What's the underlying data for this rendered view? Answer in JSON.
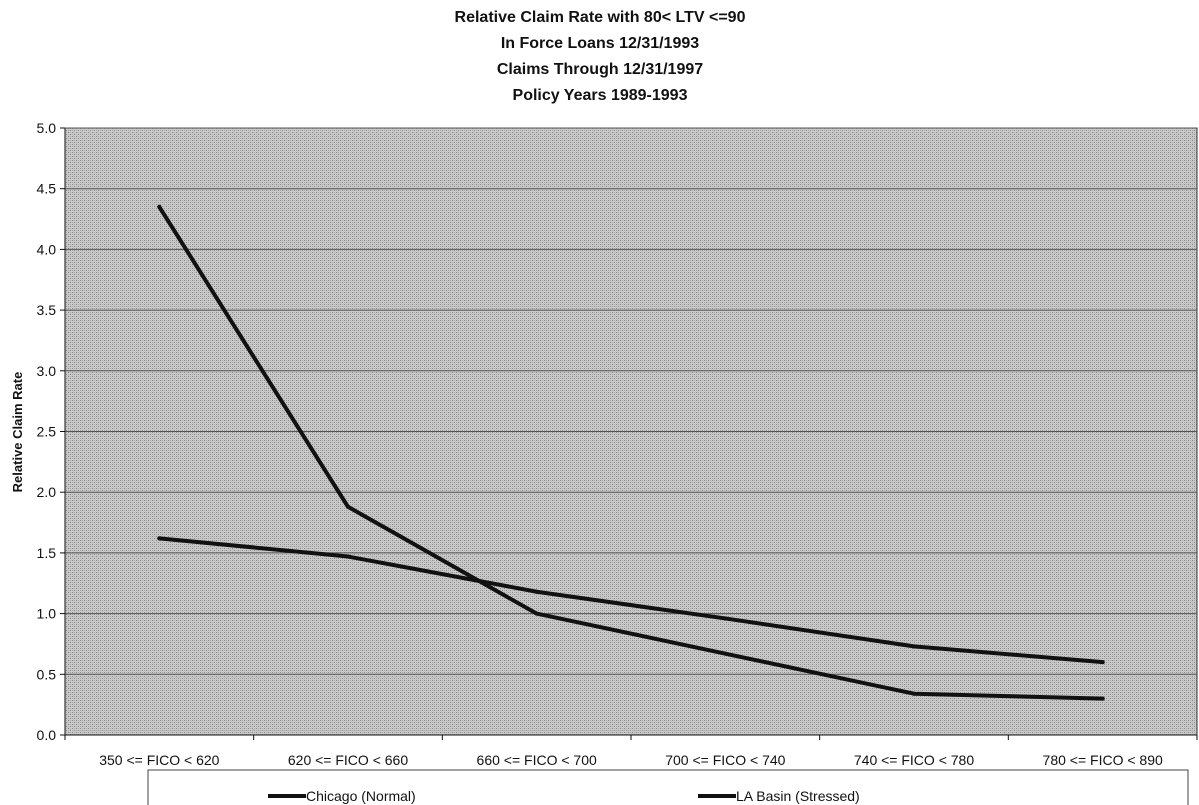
{
  "chart_data": {
    "type": "line",
    "title_lines": [
      "Relative Claim Rate with 80< LTV <=90",
      "In Force Loans 12/31/1993",
      "Claims Through 12/31/1997",
      "Policy Years 1989-1993"
    ],
    "xlabel": "",
    "ylabel": "Relative Claim Rate",
    "ylim": [
      0,
      5
    ],
    "yticks": [
      "0.0",
      "0.5",
      "1.0",
      "1.5",
      "2.0",
      "2.5",
      "3.0",
      "3.5",
      "4.0",
      "4.5",
      "5.0"
    ],
    "categories": [
      "350 <= FICO < 620",
      "620 <= FICO < 660",
      "660 <= FICO < 700",
      "700 <= FICO < 740",
      "740 <= FICO < 780",
      "780 <= FICO < 890"
    ],
    "series": [
      {
        "name": "Chicago (Normal)",
        "values": [
          1.62,
          1.47,
          1.18,
          0.96,
          0.73,
          0.6
        ]
      },
      {
        "name": "LA Basin (Stressed)",
        "values": [
          4.35,
          1.88,
          1.0,
          0.67,
          0.34,
          0.3
        ]
      }
    ],
    "grid": true,
    "legend_position": "bottom",
    "colors": {
      "plot_background": "#b9b9b9",
      "line": "#111111",
      "gridline": "#555555"
    }
  }
}
